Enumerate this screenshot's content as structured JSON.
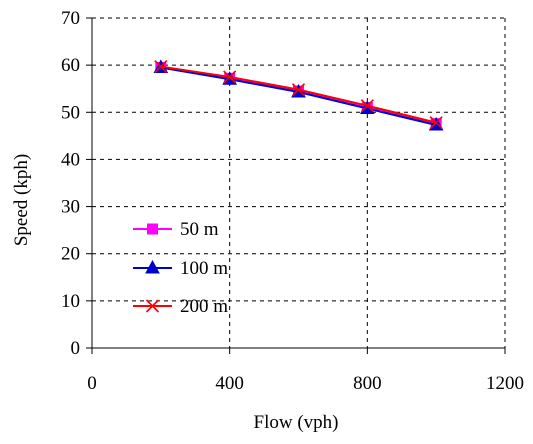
{
  "chart_data": {
    "type": "line",
    "title": "",
    "xlabel": "Flow (vph)",
    "ylabel": "Speed (kph)",
    "xlim": [
      0,
      1200
    ],
    "ylim": [
      0,
      70
    ],
    "xticks": [
      0,
      400,
      800,
      1200
    ],
    "yticks": [
      0,
      10,
      20,
      30,
      40,
      50,
      60,
      70
    ],
    "x_tick_labels": [
      "0",
      "400",
      "800",
      "1200"
    ],
    "y_tick_labels": [
      "0",
      "10",
      "20",
      "30",
      "40",
      "50",
      "60",
      "70"
    ],
    "grid": "dashed",
    "legend_position": "lower-left",
    "x": [
      200,
      400,
      600,
      800,
      1000
    ],
    "series": [
      {
        "name": "50 m",
        "values": [
          59.5,
          57.2,
          54.5,
          51.0,
          47.6
        ],
        "color": "#ff00ff",
        "marker": "square"
      },
      {
        "name": "100 m",
        "values": [
          59.5,
          57.0,
          54.3,
          50.8,
          47.3
        ],
        "color": "#0000cc",
        "marker": "triangle"
      },
      {
        "name": "200 m",
        "values": [
          59.7,
          57.5,
          54.8,
          51.4,
          47.8
        ],
        "color": "#ff0000",
        "marker": "x"
      }
    ]
  }
}
